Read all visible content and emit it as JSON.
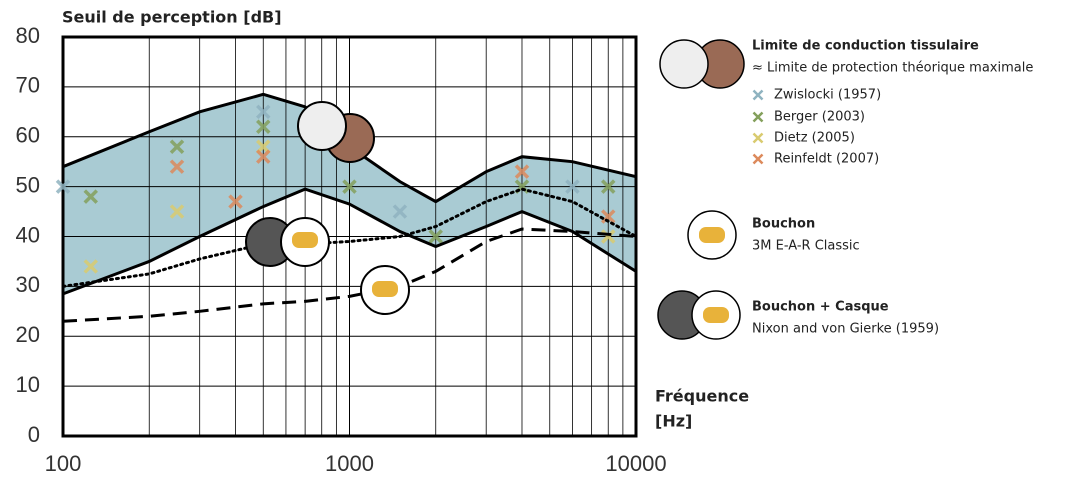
{
  "chart_data": {
    "type": "line",
    "title": "Seuil de perception [dB]",
    "xlabel": [
      "Fréquence",
      "[Hz]"
    ],
    "xlog": true,
    "xlim": [
      100,
      10000
    ],
    "xticks": [
      100,
      1000,
      10000
    ],
    "xminor": [
      200,
      300,
      400,
      500,
      600,
      700,
      800,
      900,
      2000,
      3000,
      4000,
      5000,
      6000,
      7000,
      8000,
      9000
    ],
    "ylim": [
      0,
      80
    ],
    "yticks": [
      0,
      10,
      20,
      30,
      40,
      50,
      60,
      70,
      80
    ],
    "grid": true,
    "x": [
      100,
      200,
      300,
      500,
      700,
      1000,
      1500,
      2000,
      3000,
      4000,
      6000,
      10000
    ],
    "series": [
      {
        "name": "Limite de conduction tissulaire",
        "note": "≈  Limite de protection théorique maximale",
        "kind": "band",
        "color": "#a9cbd3",
        "upper": [
          54,
          61,
          65,
          68.5,
          66,
          58,
          51,
          47,
          53,
          56,
          55,
          52
        ],
        "lower": [
          28.5,
          35,
          40,
          46,
          49.5,
          46.5,
          41,
          38,
          42,
          45,
          41,
          33
        ]
      },
      {
        "name": "Zwislocki (1957)",
        "kind": "scatter",
        "color": "#8fb3c0",
        "x": [
          100,
          500,
          1500,
          6000
        ],
        "values": [
          50,
          65,
          45,
          50
        ]
      },
      {
        "name": "Berger (2003)",
        "kind": "scatter",
        "color": "#84a05c",
        "x": [
          125,
          250,
          500,
          1000,
          2000,
          4000,
          8000
        ],
        "values": [
          48,
          58,
          62,
          50,
          40,
          50,
          50
        ]
      },
      {
        "name": "Dietz (2005)",
        "kind": "scatter",
        "color": "#d9cb6f",
        "x": [
          125,
          250,
          500,
          8000
        ],
        "values": [
          34,
          45,
          58,
          40
        ]
      },
      {
        "name": "Reinfeldt (2007)",
        "kind": "scatter",
        "color": "#dc8a5c",
        "x": [
          250,
          400,
          500,
          4000,
          8000
        ],
        "values": [
          54,
          47,
          56,
          53,
          44
        ]
      },
      {
        "name": "Bouchon",
        "note": "3M E-A-R Classic",
        "kind": "line",
        "dash": "dotted",
        "color": "#000000",
        "values": [
          30,
          32.5,
          35.5,
          38.5,
          38.5,
          39,
          40,
          42,
          47,
          49.5,
          47,
          40
        ]
      },
      {
        "name": "Bouchon + Casque",
        "note": "Nixon and von Gierke (1959)",
        "kind": "line",
        "dash": "dashed",
        "color": "#000000",
        "values": [
          23,
          24,
          25,
          26.5,
          27,
          28,
          30,
          33,
          39,
          41.5,
          41,
          40
        ]
      }
    ]
  }
}
